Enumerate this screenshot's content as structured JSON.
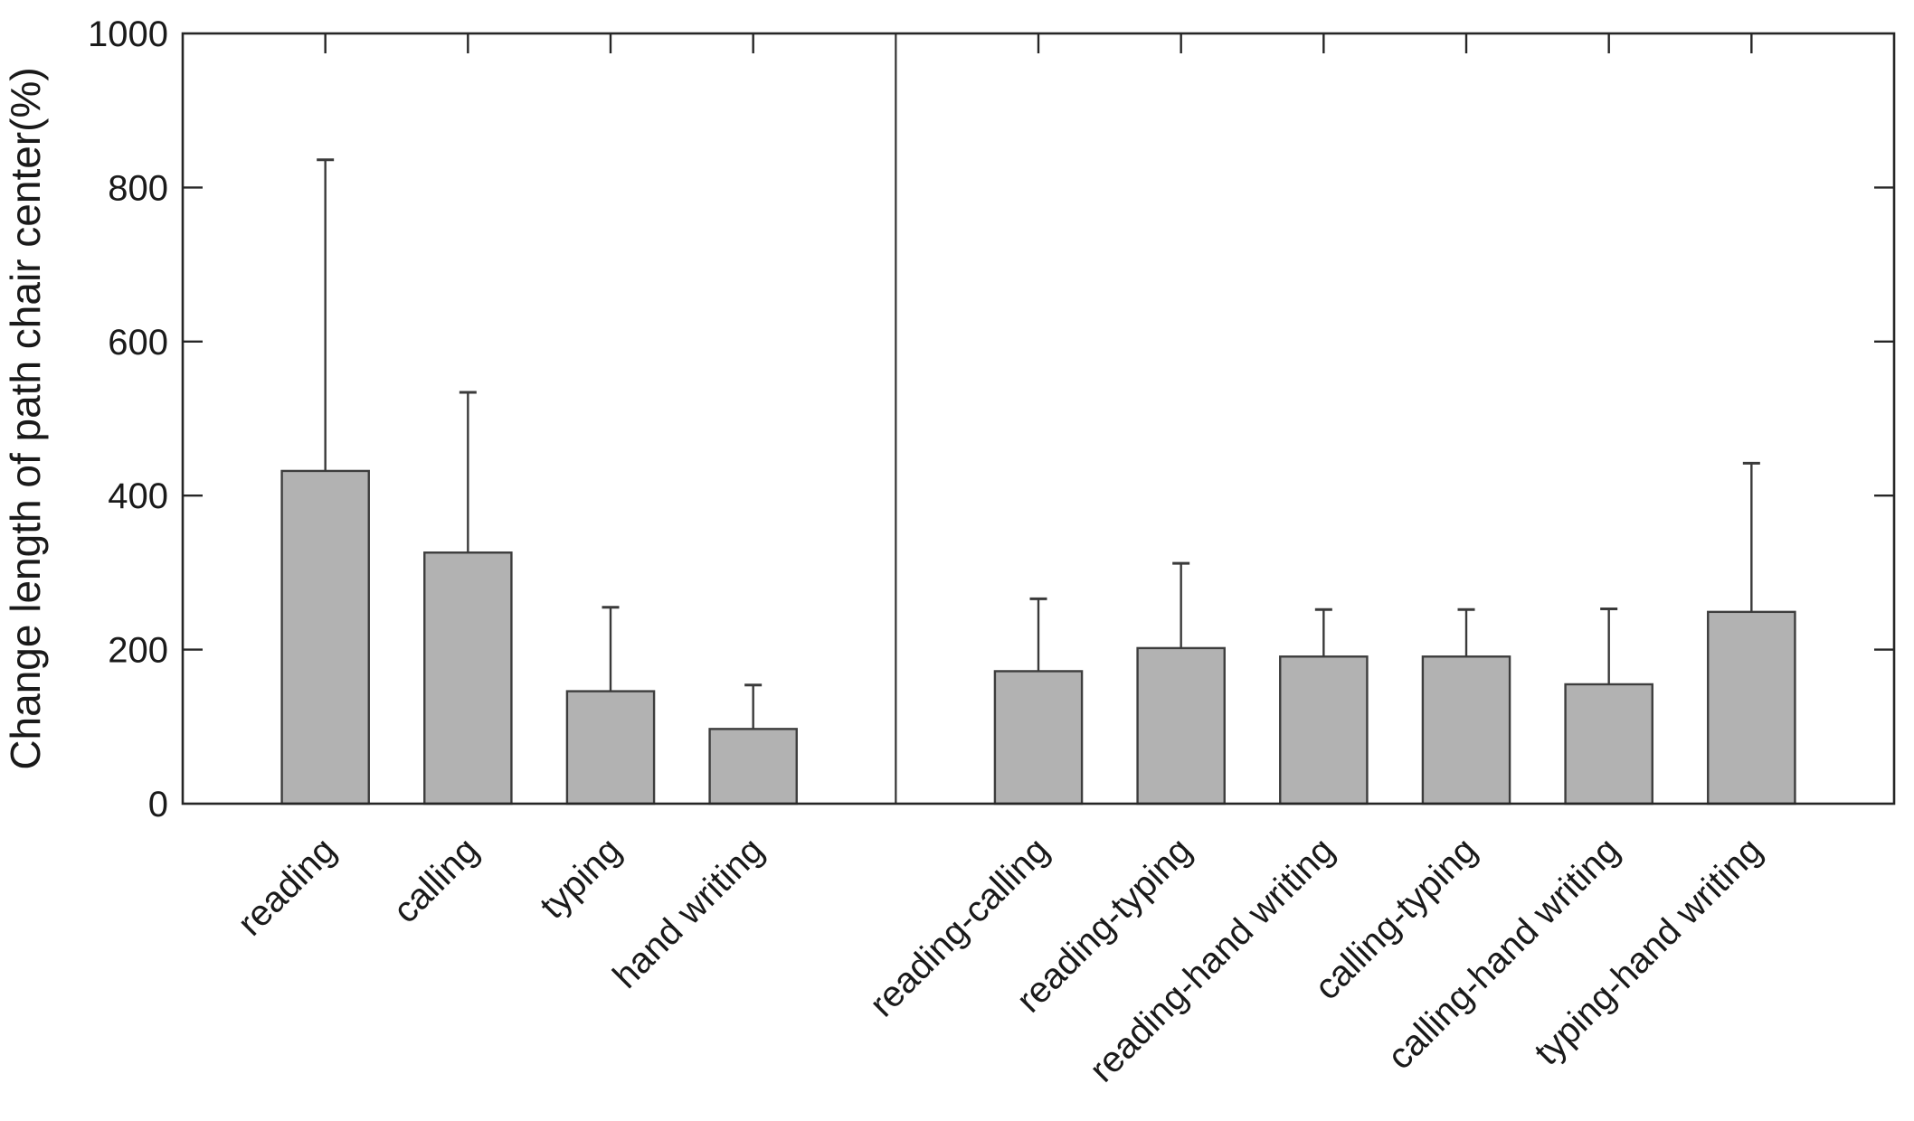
{
  "chart_data": {
    "type": "bar",
    "title": "",
    "xlabel": "",
    "ylabel": "Change length of path chair center(%)",
    "categories": [
      "reading",
      "calling",
      "typing",
      "hand writing",
      "reading-calling",
      "reading-typing",
      "reading-hand writing",
      "calling-typing",
      "calling-hand writing",
      "typing-hand writing"
    ],
    "values": [
      432,
      326,
      146,
      97,
      172,
      202,
      191,
      191,
      155,
      249
    ],
    "errors_upper": [
      404,
      208,
      109,
      57,
      94,
      110,
      61,
      61,
      98,
      193
    ],
    "error_bar_tops": [
      836,
      534,
      255,
      154,
      266,
      312,
      252,
      252,
      253,
      442
    ],
    "ylim": [
      0,
      1000
    ],
    "yticks": [
      0,
      200,
      400,
      600,
      800,
      1000
    ],
    "ytick_labels": [
      "0",
      "200",
      "400",
      "600",
      "800",
      "1000"
    ],
    "divider_after_index": 3,
    "grid": false,
    "box": true,
    "tick_direction": "in",
    "legend": "none",
    "bar_fill_color": "#b2b2b2",
    "bar_edge_color": "#3d3d3d",
    "error_bar_color": "#3a3a3a",
    "axis_color": "#262626",
    "text_color": "#1a1a1a",
    "divider_color": "#333333"
  }
}
